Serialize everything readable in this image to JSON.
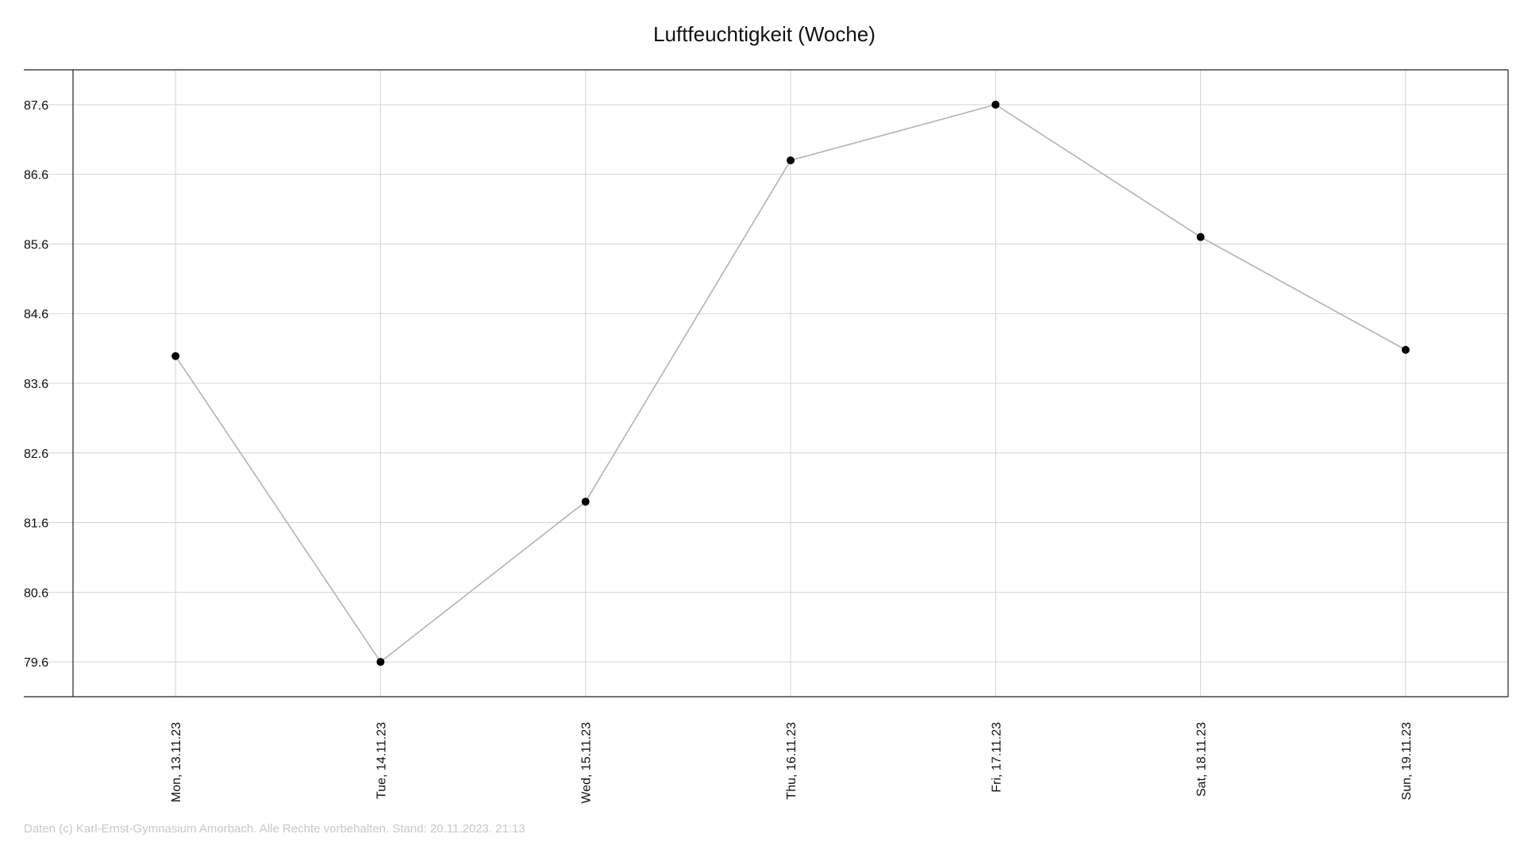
{
  "chart_data": {
    "type": "line",
    "title": "Luftfeuchtigkeit (Woche)",
    "xlabel": "",
    "ylabel": "",
    "categories": [
      "Mon, 13.11.23",
      "Tue, 14.11.23",
      "Wed, 15.11.23",
      "Thu, 16.11.23",
      "Fri, 17.11.23",
      "Sat, 18.11.23",
      "Sun, 19.11.23"
    ],
    "series": [
      {
        "values": [
          83.99,
          79.6,
          81.9,
          86.8,
          87.6,
          85.7,
          84.08
        ]
      }
    ],
    "y_ticks": [
      79.6,
      80.6,
      81.6,
      82.6,
      83.6,
      84.6,
      85.6,
      86.6,
      87.6
    ],
    "ylim": [
      79.1,
      88.1
    ],
    "grid": true,
    "legend": "none"
  },
  "colors": {
    "line": "#b3b3b3",
    "marker": "#000000",
    "grid": "#d4d4d4",
    "axis": "#222222"
  },
  "footer": {
    "text": "Daten (c) Karl-Ernst-Gymnasium Amorbach. Alle Rechte vorbehalten. Stand: 20.11.2023. 21:13"
  }
}
